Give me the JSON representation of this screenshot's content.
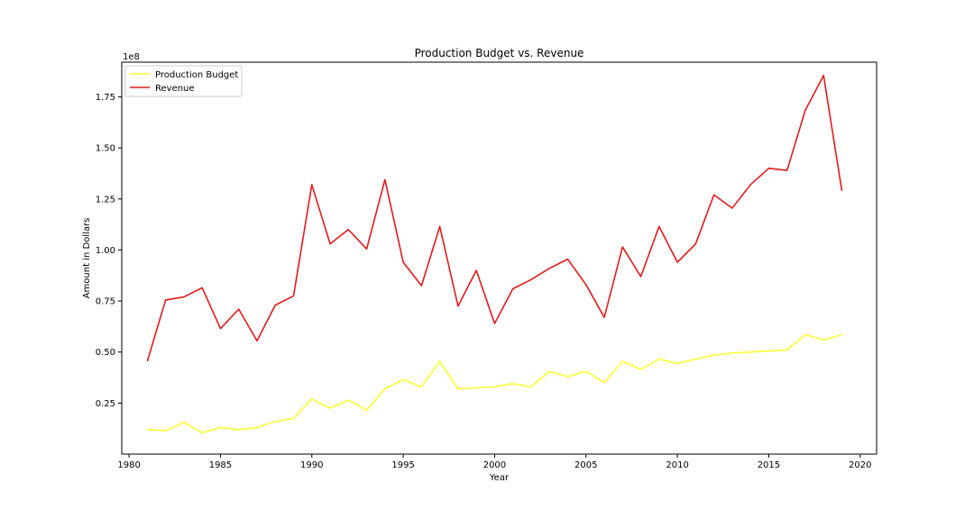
{
  "chart_data": {
    "type": "line",
    "title": "Production Budget vs. Revenue",
    "xlabel": "Year",
    "ylabel": "Amount in Dollars",
    "offset_text": "1e8",
    "x": [
      1981,
      1982,
      1983,
      1984,
      1985,
      1986,
      1987,
      1988,
      1989,
      1990,
      1991,
      1992,
      1993,
      1994,
      1995,
      1996,
      1997,
      1998,
      1999,
      2000,
      2001,
      2002,
      2003,
      2004,
      2005,
      2006,
      2007,
      2008,
      2009,
      2010,
      2011,
      2012,
      2013,
      2014,
      2015,
      2016,
      2017,
      2018,
      2019
    ],
    "xlim": [
      1979.6,
      2020.9
    ],
    "ylim": [
      0.0,
      1.92
    ],
    "x_ticks": [
      1980,
      1985,
      1990,
      1995,
      2000,
      2005,
      2010,
      2015,
      2020
    ],
    "x_tick_labels": [
      "1980",
      "1985",
      "1990",
      "1995",
      "2000",
      "2005",
      "2010",
      "2015",
      "2020"
    ],
    "y_ticks": [
      0.25,
      0.5,
      0.75,
      1.0,
      1.25,
      1.5,
      1.75
    ],
    "y_tick_labels": [
      "0.25",
      "0.50",
      "0.75",
      "1.00",
      "1.25",
      "1.50",
      "1.75"
    ],
    "series": [
      {
        "name": "Production Budget",
        "color": "#ffff33",
        "values": [
          0.12,
          0.115,
          0.155,
          0.105,
          0.13,
          0.12,
          0.13,
          0.16,
          0.175,
          0.27,
          0.225,
          0.265,
          0.215,
          0.32,
          0.365,
          0.33,
          0.455,
          0.32,
          0.325,
          0.33,
          0.345,
          0.33,
          0.405,
          0.38,
          0.405,
          0.35,
          0.455,
          0.415,
          0.465,
          0.445,
          0.465,
          0.485,
          0.495,
          0.5,
          0.505,
          0.51,
          0.585,
          0.56,
          0.585
        ]
      },
      {
        "name": "Revenue",
        "color": "#e31a1c",
        "values": [
          0.455,
          0.755,
          0.77,
          0.815,
          0.615,
          0.71,
          0.555,
          0.73,
          0.775,
          1.32,
          1.03,
          1.1,
          1.005,
          1.345,
          0.94,
          0.825,
          1.115,
          0.725,
          0.9,
          0.64,
          0.81,
          0.855,
          0.91,
          0.955,
          0.83,
          0.67,
          1.015,
          0.87,
          1.115,
          0.94,
          1.03,
          1.27,
          1.205,
          1.32,
          1.4,
          1.39,
          1.685,
          1.855,
          1.29
        ]
      }
    ],
    "legend_position": "upper-left",
    "grid": false
  }
}
